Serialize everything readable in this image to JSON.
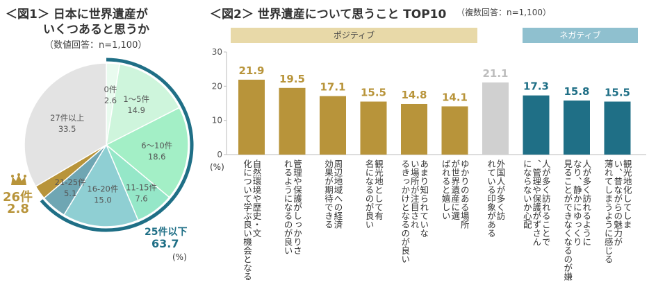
{
  "fig1": {
    "title_line1": "＜図1＞ 日本に世界遺産が",
    "title_line2": "いくつあると思うか",
    "subtitle": "（数値回答：n=1,100）",
    "unit": "(%)",
    "highlight_label": "25件以下",
    "highlight_value": "63.7",
    "crown_label": "26件",
    "crown_value": "2.8"
  },
  "fig2": {
    "title": "＜図2＞ 世界遺産について思うこと TOP10",
    "subtitle": "（複数回答：n=1,100）",
    "positive_label": "ポジティブ",
    "negative_label": "ネガティブ",
    "unit": "(%)"
  },
  "colors": {
    "gold": "#b8943a",
    "gray": "#d0d0d0",
    "teal": "#1f6f86",
    "positive_band": "#e8d9a8",
    "negative_band": "#8fc0cf"
  },
  "chart_data": [
    {
      "type": "pie",
      "title": "日本に世界遺産がいくつあると思うか",
      "slices": [
        {
          "label": "0件",
          "value": 2.6,
          "color": "#e9fbef"
        },
        {
          "label": "1～5件",
          "value": 14.9,
          "color": "#cef5dc"
        },
        {
          "label": "6～10件",
          "value": 18.6,
          "color": "#a3efc6"
        },
        {
          "label": "11-15件",
          "value": 7.6,
          "color": "#95e7c8"
        },
        {
          "label": "16-20件",
          "value": 15.0,
          "color": "#8fcfd3"
        },
        {
          "label": "21-25件",
          "value": 5.1,
          "color": "#6fa6b3"
        },
        {
          "label": "26件",
          "value": 2.8,
          "color": "#b8943a"
        },
        {
          "label": "27件以上",
          "value": 33.5,
          "color": "#e3e3e3"
        }
      ]
    },
    {
      "type": "bar",
      "title": "世界遺産について思うこと TOP10",
      "ylim": [
        0,
        30
      ],
      "yticks": [
        "0",
        "10",
        "20",
        "30"
      ],
      "categories": [
        "自然環境や歴史・文化について学ぶ良い機会となる",
        "管理や保護がしっかりされるようになるのが良い",
        "周辺地域への経済効果が期待できる",
        "観光地として有名になるのが良い",
        "あまり知られていない場所が注目されるきっかけとなるのが良い",
        "ゆかりのある場所が世界遺産に選ばれると嬉しい",
        "外国人が多く訪れている印象がある",
        "人が多く訪れることで、管理や保護がずさんにならないか心配",
        "人が多く訪れるようになり、静かにゆっくり見ることができなくなるのが嫌",
        "観光地化してしまい、昔ながらの魅力が薄れてしまうように感じる"
      ],
      "values": [
        21.9,
        19.5,
        17.1,
        15.5,
        14.8,
        14.1,
        21.1,
        17.3,
        15.8,
        15.5
      ],
      "groups": [
        "positive",
        "positive",
        "positive",
        "positive",
        "positive",
        "positive",
        "neutral",
        "negative",
        "negative",
        "negative"
      ]
    }
  ]
}
